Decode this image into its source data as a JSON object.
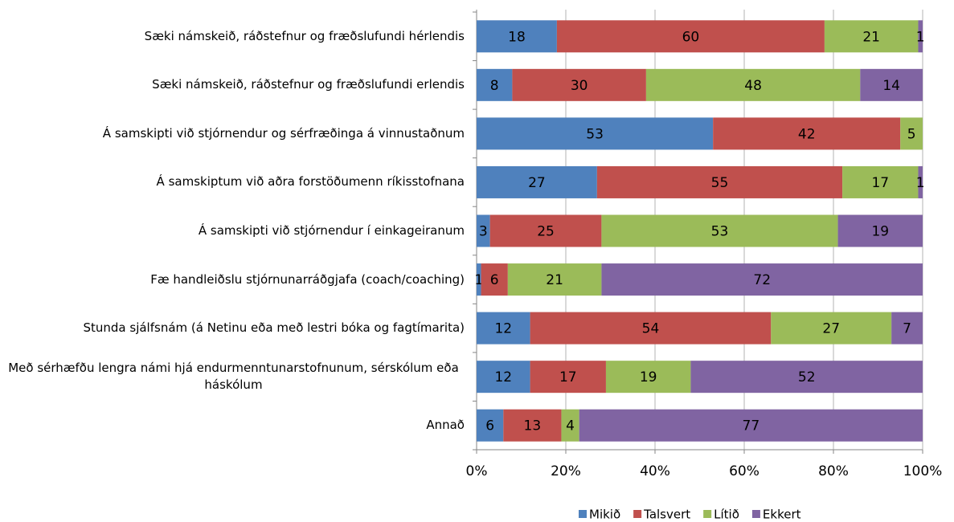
{
  "chart_data": {
    "type": "stacked-bar-horizontal",
    "categories": [
      "Sæki námskeið, ráðstefnur og fræðslufundi hérlendis",
      "Sæki námskeið, ráðstefnur og fræðslufundi erlendis",
      "Á samskipti við stjórnendur og sérfræðinga á vinnustaðnum",
      "Á samskiptum við aðra forstöðumenn ríkisstofnana",
      "Á samskipti við stjórnendur í einkageiranum",
      "Fæ handleiðslu stjórnunarráðgjafa (coach/coaching)",
      "Stunda sjálfsnám (á Netinu eða með lestri bóka og fagtímarita)",
      "Með sérhæfðu lengra námi hjá endurmenntunarstofnunum, sérskólum eða háskólum",
      "Annað"
    ],
    "series": [
      {
        "name": "Mikið",
        "color": "#4f81bd",
        "values": [
          18,
          8,
          53,
          27,
          3,
          1,
          12,
          12,
          6
        ]
      },
      {
        "name": "Talsvert",
        "color": "#c0504d",
        "values": [
          60,
          30,
          42,
          55,
          25,
          6,
          54,
          17,
          13
        ]
      },
      {
        "name": "Lítið",
        "color": "#9bbb59",
        "values": [
          21,
          48,
          5,
          17,
          53,
          21,
          27,
          19,
          4
        ]
      },
      {
        "name": "Ekkert",
        "color": "#8064a2",
        "values": [
          1,
          14,
          0,
          1,
          19,
          72,
          7,
          52,
          77
        ]
      }
    ],
    "xlim": [
      0,
      100
    ],
    "xticks": [
      {
        "value": 0,
        "label": "0%"
      },
      {
        "value": 20,
        "label": "20%"
      },
      {
        "value": 40,
        "label": "40%"
      },
      {
        "value": 60,
        "label": "60%"
      },
      {
        "value": 80,
        "label": "80%"
      },
      {
        "value": 100,
        "label": "100%"
      }
    ],
    "grid": true,
    "legend": "bottom"
  }
}
